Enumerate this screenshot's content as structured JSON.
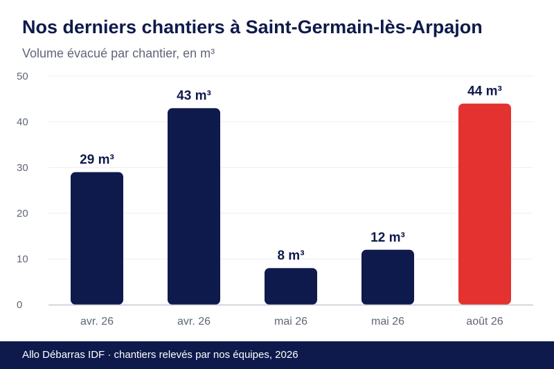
{
  "header": {
    "title": "Nos derniers chantiers à Saint-Germain-lès-Arpajon",
    "subtitle": "Volume évacué par chantier, en m³"
  },
  "footer": {
    "source": "Allo Débarras IDF · chantiers relevés par nos équipes, 2026"
  },
  "chart_data": {
    "type": "bar",
    "title": "Nos derniers chantiers à Saint-Germain-lès-Arpajon",
    "subtitle": "Volume évacué par chantier, en m³",
    "categories": [
      "avr. 26",
      "avr. 26",
      "mai 26",
      "mai 26",
      "août 26"
    ],
    "values": [
      29,
      43,
      8,
      12,
      44
    ],
    "value_labels": [
      "29 m³",
      "43 m³",
      "8 m³",
      "12 m³",
      "44 m³"
    ],
    "xlabel": "",
    "ylabel": "",
    "ylim": [
      0,
      50
    ],
    "yticks": [
      0,
      10,
      20,
      30,
      40,
      50
    ],
    "grid": true,
    "legend": "none",
    "colors": {
      "bar": "#0e1a4b",
      "highlight": "#e3322f",
      "grid": "#ececf1",
      "axis": "#c7c9d3",
      "tick_text": "#5f6677",
      "value_text": "#0e1a4b"
    },
    "highlight_index": 4
  }
}
